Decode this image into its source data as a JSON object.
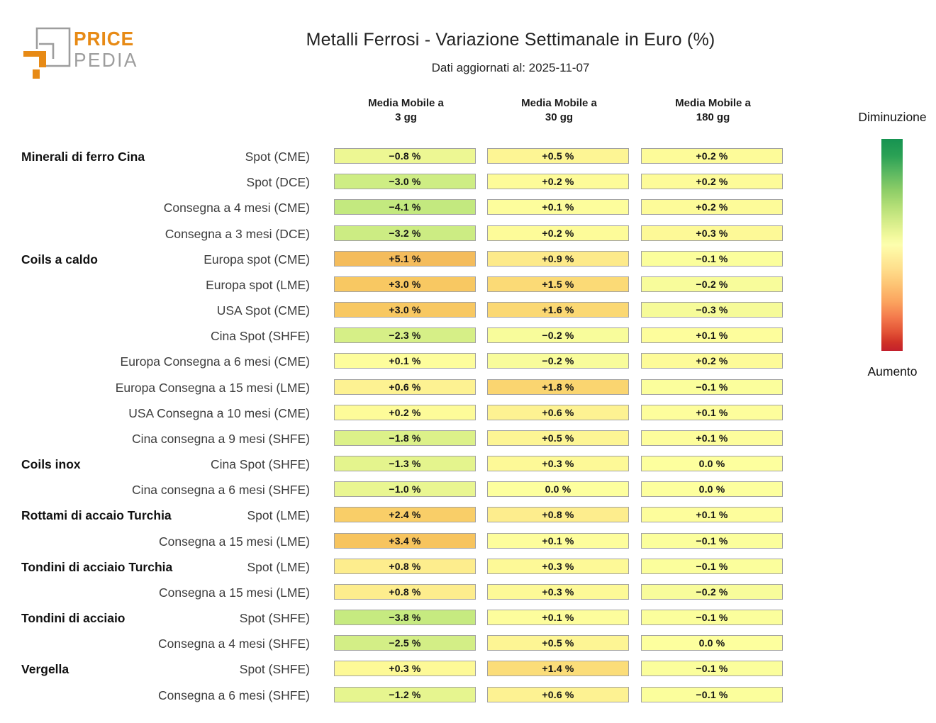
{
  "logo": {
    "brand_top": "PRICE",
    "brand_bottom": "PEDIA",
    "orange": "#e78a15",
    "gray": "#9d9d9d"
  },
  "chart_data": {
    "type": "heatmap",
    "title": "Metalli Ferrosi - Variazione Settimanale in Euro (%)",
    "subtitle": "Dati aggiornati al: 2025-11-07",
    "value_format": "signed percent, one decimal, e.g. +0.5 %, −0.8 %, 0.0 %",
    "columns": [
      {
        "line1": "Media Mobile a",
        "line2": "3 gg"
      },
      {
        "line1": "Media Mobile a",
        "line2": "30 gg"
      },
      {
        "line1": "Media Mobile a",
        "line2": "180 gg"
      }
    ],
    "rows": [
      {
        "group": "Minerali di ferro Cina",
        "label": "Spot (CME)",
        "values": [
          -0.8,
          0.5,
          0.2
        ]
      },
      {
        "group": "",
        "label": "Spot (DCE)",
        "values": [
          -3.0,
          0.2,
          0.2
        ]
      },
      {
        "group": "",
        "label": "Consegna a 4 mesi (CME)",
        "values": [
          -4.1,
          0.1,
          0.2
        ]
      },
      {
        "group": "",
        "label": "Consegna a 3 mesi (DCE)",
        "values": [
          -3.2,
          0.2,
          0.3
        ]
      },
      {
        "group": "Coils a caldo",
        "label": "Europa spot (CME)",
        "values": [
          5.1,
          0.9,
          -0.1
        ]
      },
      {
        "group": "",
        "label": "Europa spot (LME)",
        "values": [
          3.0,
          1.5,
          -0.2
        ]
      },
      {
        "group": "",
        "label": "USA Spot (CME)",
        "values": [
          3.0,
          1.6,
          -0.3
        ]
      },
      {
        "group": "",
        "label": "Cina Spot (SHFE)",
        "values": [
          -2.3,
          -0.2,
          0.1
        ]
      },
      {
        "group": "",
        "label": "Europa Consegna a 6 mesi (CME)",
        "values": [
          0.1,
          -0.2,
          0.2
        ]
      },
      {
        "group": "",
        "label": "Europa Consegna a 15 mesi (LME)",
        "values": [
          0.6,
          1.8,
          -0.1
        ]
      },
      {
        "group": "",
        "label": "USA Consegna a 10 mesi (CME)",
        "values": [
          0.2,
          0.6,
          0.1
        ]
      },
      {
        "group": "",
        "label": "Cina consegna a 9 mesi (SHFE)",
        "values": [
          -1.8,
          0.5,
          0.1
        ]
      },
      {
        "group": "Coils inox",
        "label": "Cina Spot (SHFE)",
        "values": [
          -1.3,
          0.3,
          0.0
        ]
      },
      {
        "group": "",
        "label": "Cina consegna a 6 mesi (SHFE)",
        "values": [
          -1.0,
          0.0,
          0.0
        ]
      },
      {
        "group": "Rottami di accaio Turchia",
        "label": "Spot (LME)",
        "values": [
          2.4,
          0.8,
          0.1
        ]
      },
      {
        "group": "",
        "label": "Consegna a 15 mesi (LME)",
        "values": [
          3.4,
          0.1,
          -0.1
        ]
      },
      {
        "group": "Tondini di acciaio Turchia",
        "label": "Spot (LME)",
        "values": [
          0.8,
          0.3,
          -0.1
        ]
      },
      {
        "group": "",
        "label": "Consegna a 15 mesi (LME)",
        "values": [
          0.8,
          0.3,
          -0.2
        ]
      },
      {
        "group": "Tondini di acciaio",
        "label": "Spot (SHFE)",
        "values": [
          -3.8,
          0.1,
          -0.1
        ]
      },
      {
        "group": "",
        "label": "Consegna a 4 mesi (SHFE)",
        "values": [
          -2.5,
          0.5,
          0.0
        ]
      },
      {
        "group": "Vergella",
        "label": "Spot (SHFE)",
        "values": [
          0.3,
          1.4,
          -0.1
        ]
      },
      {
        "group": "",
        "label": "Consegna a 6 mesi (SHFE)",
        "values": [
          -1.2,
          0.6,
          -0.1
        ]
      }
    ],
    "colormap_stops": [
      [
        -4.6,
        "#bde67d"
      ],
      [
        -3.6,
        "#c8eb81"
      ],
      [
        -2.6,
        "#d2ee86"
      ],
      [
        -1.6,
        "#def28a"
      ],
      [
        -0.8,
        "#edf793"
      ],
      [
        -0.3,
        "#f6fb99"
      ],
      [
        0.0,
        "#fdff9e"
      ],
      [
        0.3,
        "#fdf997"
      ],
      [
        0.7,
        "#fdf090"
      ],
      [
        1.1,
        "#fce483"
      ],
      [
        1.6,
        "#fbd873"
      ],
      [
        2.2,
        "#f9d06a"
      ],
      [
        3.0,
        "#f8c862"
      ],
      [
        3.6,
        "#f6c25c"
      ],
      [
        5.5,
        "#f4ba5c"
      ]
    ],
    "legend": {
      "top_label": "Diminuzione",
      "bottom_label": "Aumento",
      "gradient_stops": [
        [
          "#169351",
          0
        ],
        [
          "#2ba155",
          8
        ],
        [
          "#5cb861",
          16
        ],
        [
          "#8ccd67",
          24
        ],
        [
          "#b5df77",
          32
        ],
        [
          "#d9ee8c",
          40
        ],
        [
          "#f2f99d",
          46
        ],
        [
          "#fdfeae",
          50
        ],
        [
          "#fef3a0",
          54
        ],
        [
          "#fedf8d",
          61
        ],
        [
          "#fdc373",
          69
        ],
        [
          "#fba35e",
          77
        ],
        [
          "#f47b4d",
          84
        ],
        [
          "#e35336",
          91
        ],
        [
          "#d03127",
          96
        ],
        [
          "#c3202c",
          100
        ]
      ]
    }
  }
}
